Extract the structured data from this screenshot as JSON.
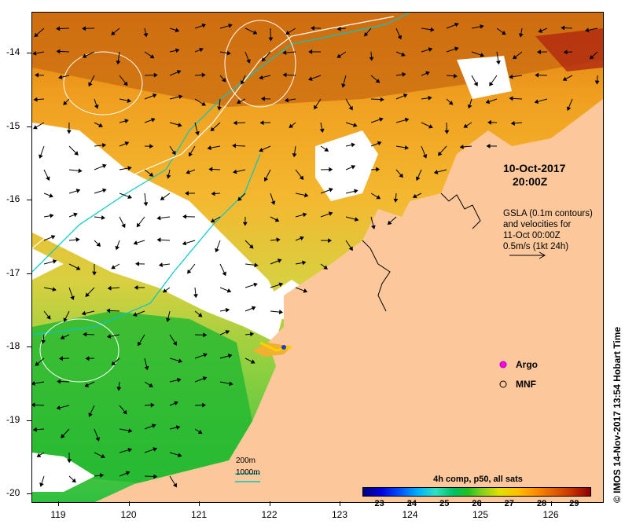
{
  "map": {
    "x_axis_ticks": [
      "119",
      "120",
      "121",
      "122",
      "123",
      "124",
      "125",
      "126"
    ],
    "y_axis_ticks": [
      "-14",
      "-15",
      "-16",
      "-17",
      "-18",
      "-19",
      "-20"
    ],
    "date": "10-Oct-2017",
    "time": "20:00Z",
    "info_lines": [
      "GSLA (0.1m contours)",
      "and velocities for",
      "11-Oct 00:00Z",
      "0.5m/s (1kt 24h)"
    ],
    "legend": {
      "argo": "Argo",
      "mnf": "MNF"
    },
    "scale_labels": {
      "contour_200": "200m",
      "contour_1000": "1000m"
    },
    "colorbar": {
      "title": "4h comp, p50, all sats",
      "ticks": [
        "23",
        "24",
        "25",
        "26",
        "27",
        "28",
        "29"
      ],
      "min": 22.5,
      "max": 29.5
    },
    "credit": "© IMOS 14-Nov-2017 13:54 Hobart Time",
    "colors": {
      "land": "#fcc89b",
      "cloud": "#ffffff",
      "contour_200": "#00c8c8",
      "contour_1000": "#ffffff"
    }
  }
}
